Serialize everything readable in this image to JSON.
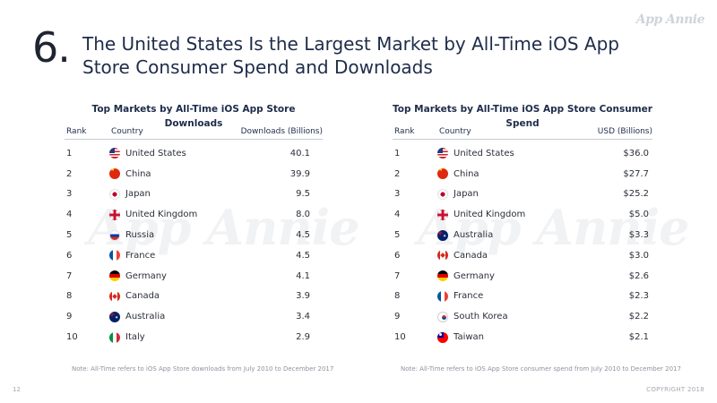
{
  "slide": {
    "number": "6.",
    "title": "The United States Is the Largest Market by All-Time iOS App Store Consumer Spend and Downloads",
    "logo": "App Annie",
    "watermark": "App Annie",
    "page_number": "12",
    "copyright": "COPYRIGHT 2018"
  },
  "downloads_table": {
    "title": "Top Markets by All-Time iOS App Store Downloads",
    "headers": {
      "rank": "Rank",
      "country": "Country",
      "value": "Downloads (Billions)"
    },
    "rows": [
      {
        "rank": "1",
        "country": "United States",
        "flag": "us-flag-icon",
        "value": "40.1"
      },
      {
        "rank": "2",
        "country": "China",
        "flag": "cn-flag-icon",
        "value": "39.9"
      },
      {
        "rank": "3",
        "country": "Japan",
        "flag": "jp-flag-icon",
        "value": "9.5"
      },
      {
        "rank": "4",
        "country": "United Kingdom",
        "flag": "gb-flag-icon",
        "value": "8.0"
      },
      {
        "rank": "5",
        "country": "Russia",
        "flag": "ru-flag-icon",
        "value": "4.5"
      },
      {
        "rank": "6",
        "country": "France",
        "flag": "fr-flag-icon",
        "value": "4.5"
      },
      {
        "rank": "7",
        "country": "Germany",
        "flag": "de-flag-icon",
        "value": "4.1"
      },
      {
        "rank": "8",
        "country": "Canada",
        "flag": "ca-flag-icon",
        "value": "3.9"
      },
      {
        "rank": "9",
        "country": "Australia",
        "flag": "au-flag-icon",
        "value": "3.4"
      },
      {
        "rank": "10",
        "country": "Italy",
        "flag": "it-flag-icon",
        "value": "2.9"
      }
    ],
    "note": "Note: All-Time refers to iOS App Store downloads from July 2010 to December 2017"
  },
  "spend_table": {
    "title": "Top Markets by All-Time iOS App Store Consumer Spend",
    "headers": {
      "rank": "Rank",
      "country": "Country",
      "value": "USD (Billions)"
    },
    "rows": [
      {
        "rank": "1",
        "country": "United States",
        "flag": "us-flag-icon",
        "value": "$36.0"
      },
      {
        "rank": "2",
        "country": "China",
        "flag": "cn-flag-icon",
        "value": "$27.7"
      },
      {
        "rank": "3",
        "country": "Japan",
        "flag": "jp-flag-icon",
        "value": "$25.2"
      },
      {
        "rank": "4",
        "country": "United Kingdom",
        "flag": "gb-flag-icon",
        "value": "$5.0"
      },
      {
        "rank": "5",
        "country": "Australia",
        "flag": "au-flag-icon",
        "value": "$3.3"
      },
      {
        "rank": "6",
        "country": "Canada",
        "flag": "ca-flag-icon",
        "value": "$3.0"
      },
      {
        "rank": "7",
        "country": "Germany",
        "flag": "de-flag-icon",
        "value": "$2.6"
      },
      {
        "rank": "8",
        "country": "France",
        "flag": "fr-flag-icon",
        "value": "$2.3"
      },
      {
        "rank": "9",
        "country": "South Korea",
        "flag": "kr-flag-icon",
        "value": "$2.2"
      },
      {
        "rank": "10",
        "country": "Taiwan",
        "flag": "tw-flag-icon",
        "value": "$2.1"
      }
    ],
    "note": "Note: All-Time refers to iOS App Store consumer spend from July 2010 to December 2017"
  }
}
